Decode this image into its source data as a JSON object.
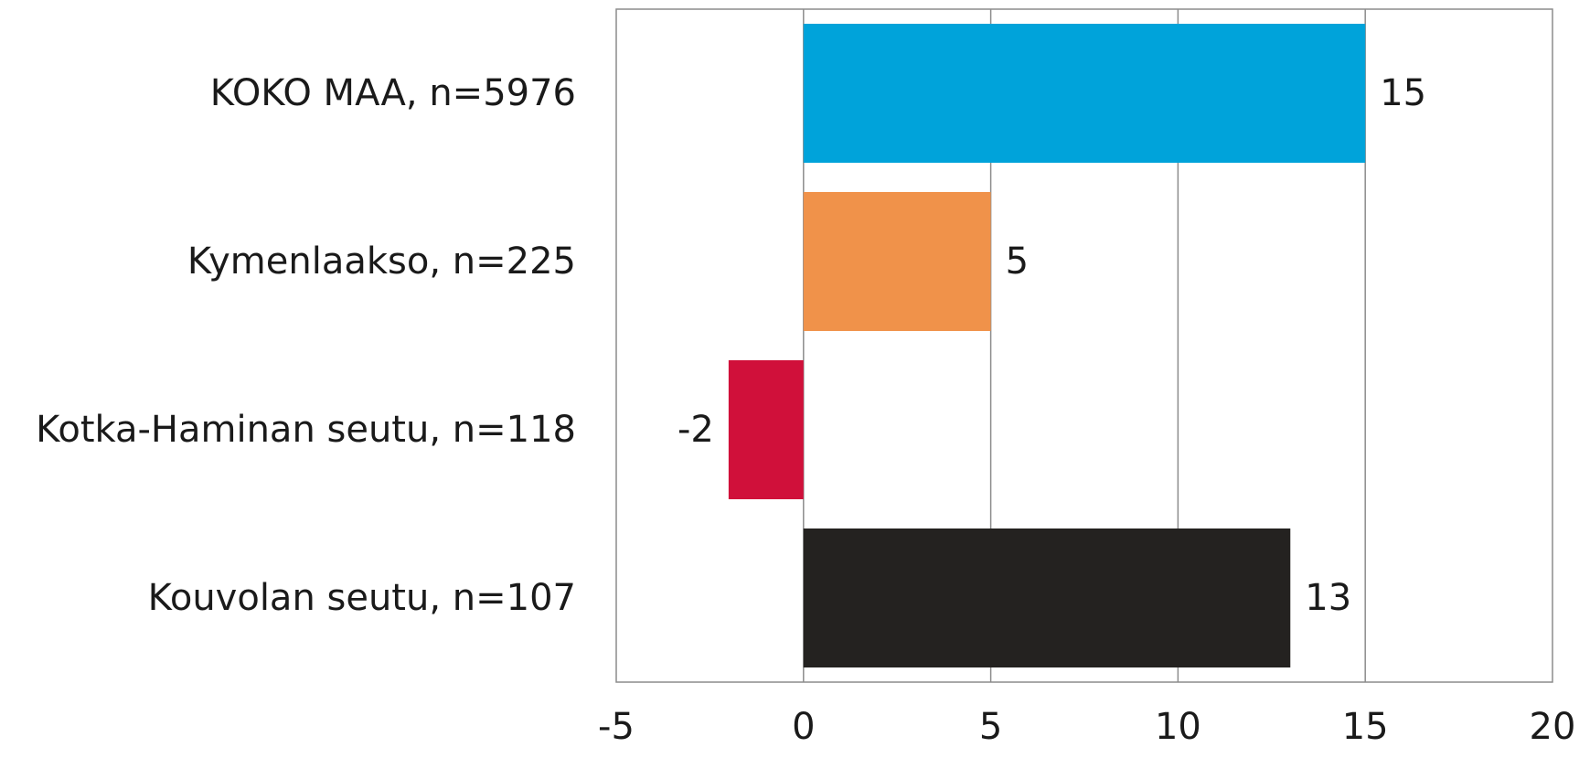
{
  "chart_data": {
    "type": "bar",
    "orientation": "horizontal",
    "categories": [
      "KOKO MAA, n=5976",
      "Kymenlaakso, n=225",
      "Kotka-Haminan seutu, n=118",
      "Kouvolan seutu, n=107"
    ],
    "values": [
      15,
      5,
      -2,
      13
    ],
    "bar_colors": [
      "#00A3DA",
      "#F0924A",
      "#D0103A",
      "#242220"
    ],
    "xlim": [
      -5,
      20
    ],
    "xticks": [
      -5,
      0,
      5,
      10,
      15,
      20
    ],
    "xtick_labels": [
      "-5",
      "0",
      "5",
      "10",
      "15",
      "20"
    ],
    "data_labels": [
      "15",
      "5",
      "-2",
      "13"
    ],
    "title": "",
    "xlabel": "",
    "ylabel": "",
    "grid": "vertical",
    "legend": "none"
  }
}
